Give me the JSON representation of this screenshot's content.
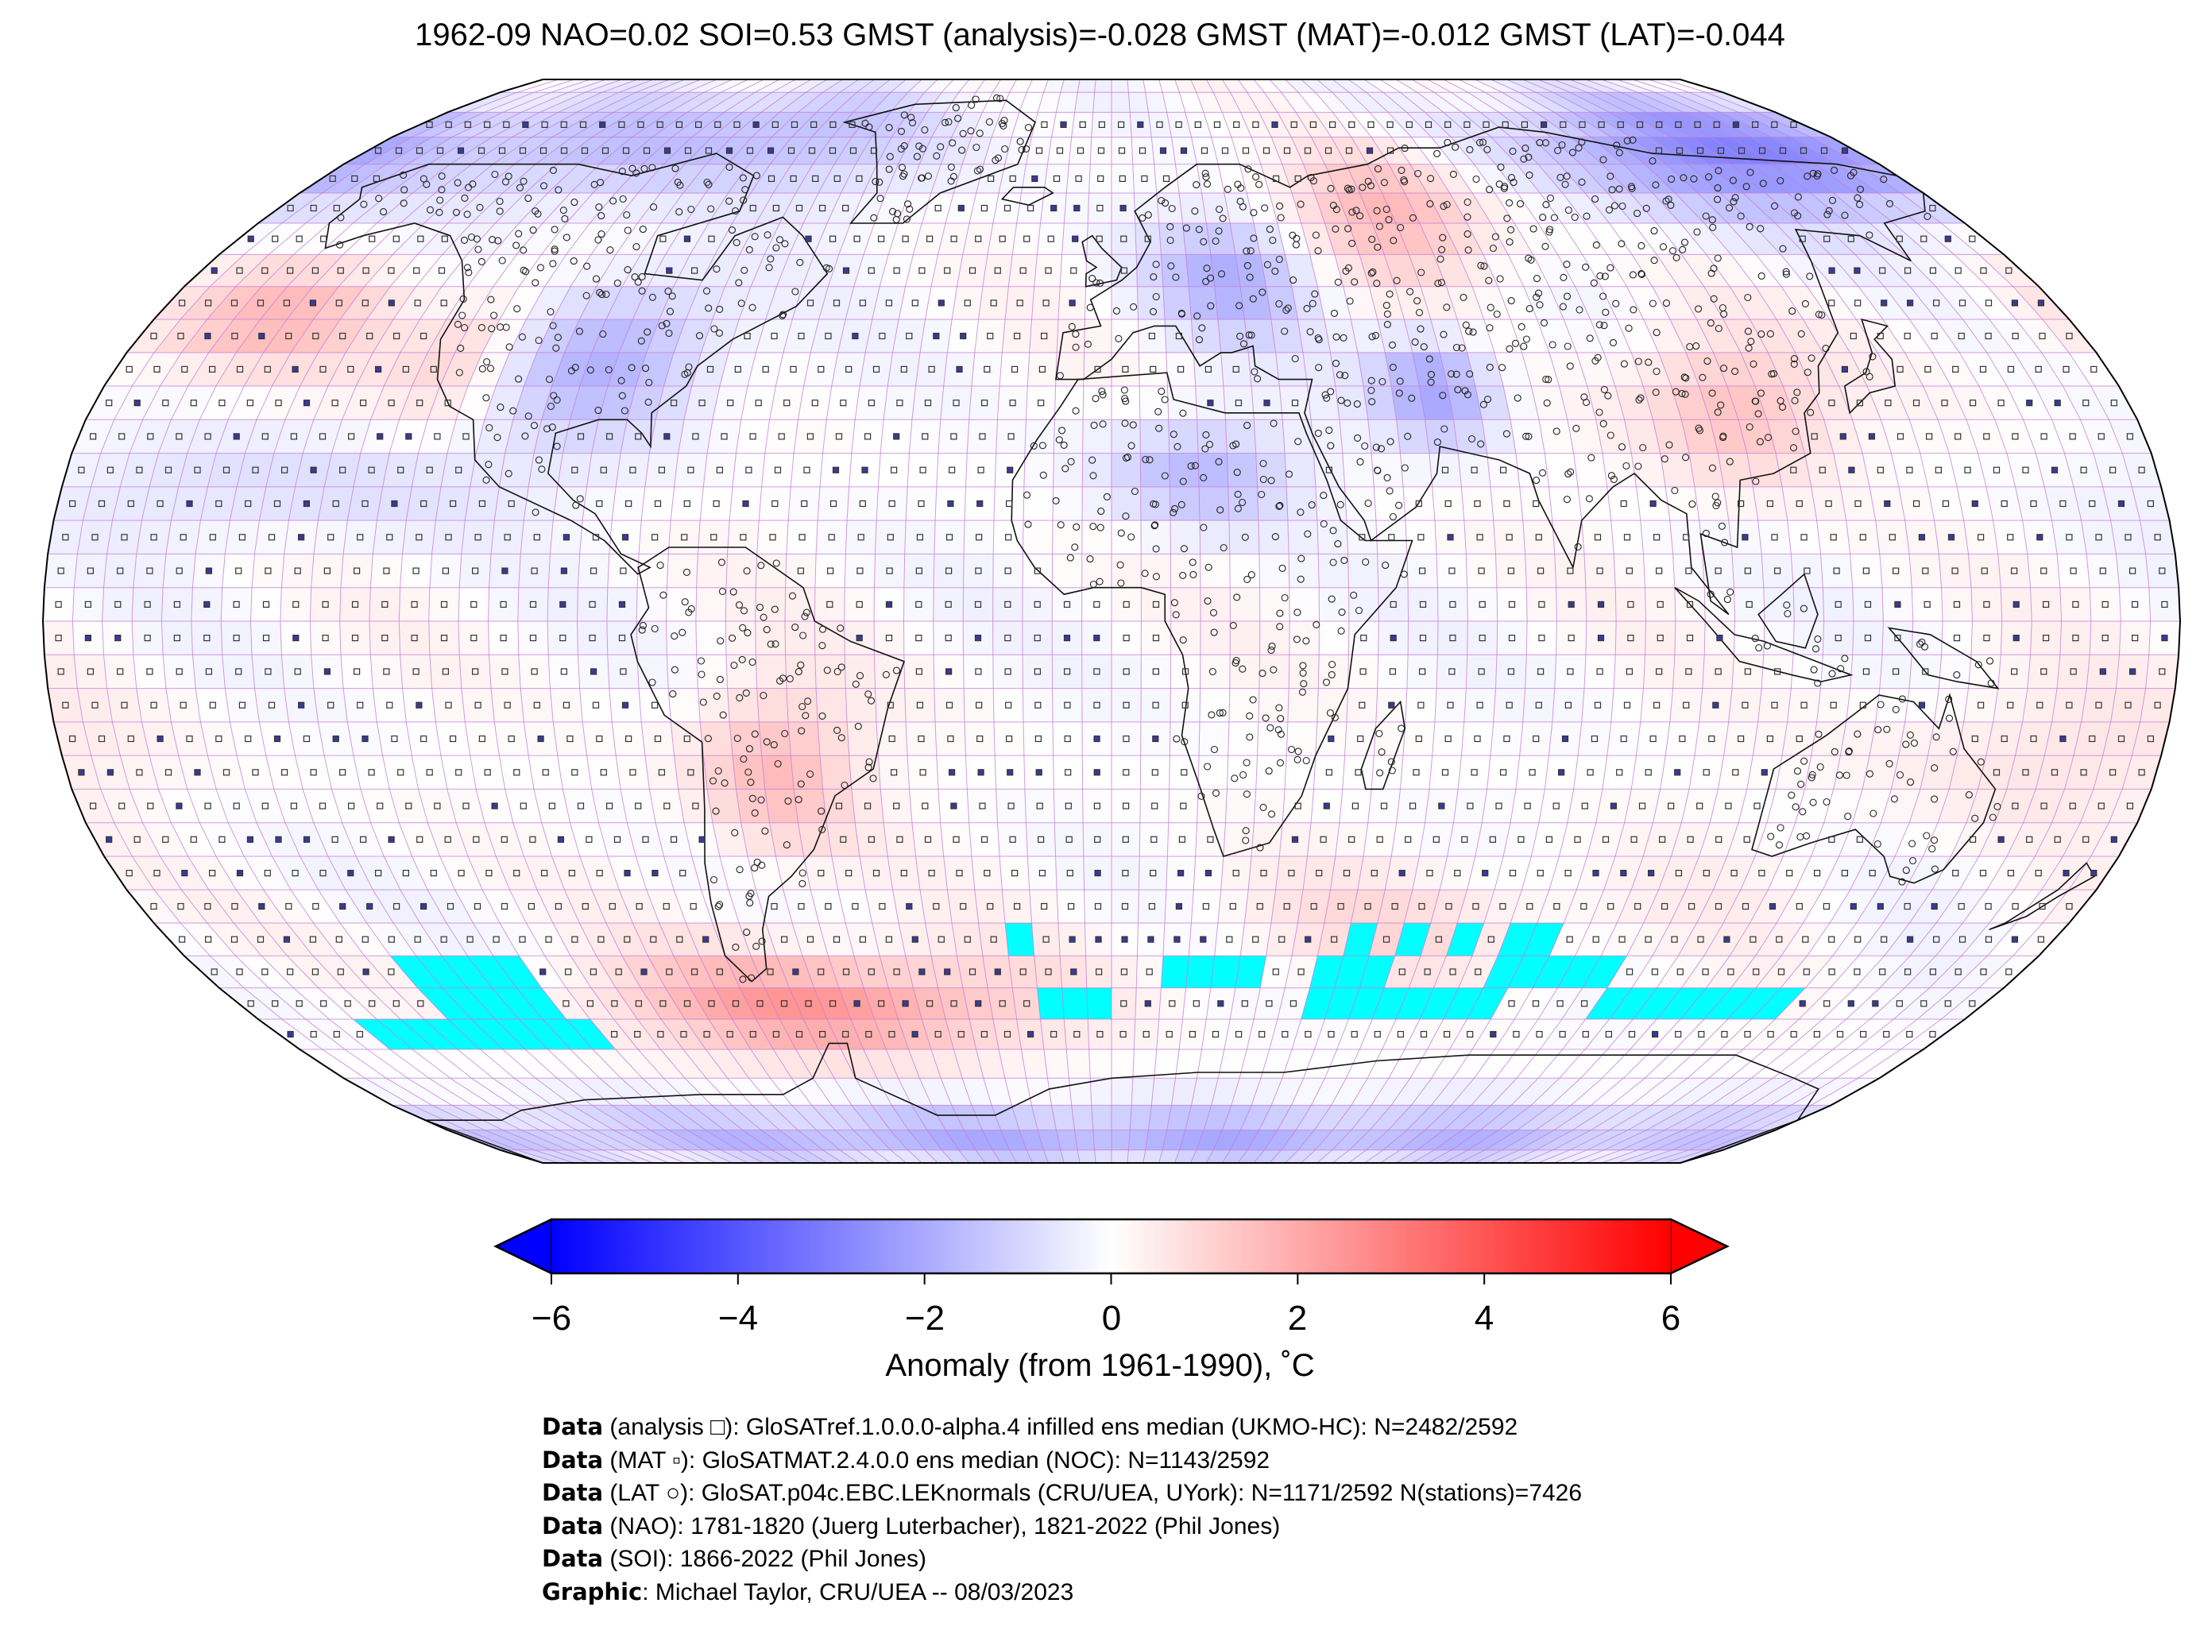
{
  "title": "1962-09 NAO=0.02 SOI=0.53 GMST (analysis)=-0.028 GMST (MAT)=-0.012 GMST (LAT)=-0.044",
  "map": {
    "projection": "Robinson",
    "grid": "5 degree lat/lon cells",
    "colormap": "bwr",
    "missing_color": "#00ffff",
    "gridline_color": "#c27bd6",
    "markers": {
      "analysis": "open-square",
      "mat": "filled-square",
      "lat": "open-circle"
    },
    "anomaly_regions": [
      {
        "name": "Arctic Siberia",
        "value": -2.8
      },
      {
        "name": "Arctic Canada",
        "value": -1.6
      },
      {
        "name": "North America interior",
        "value": -1.8
      },
      {
        "name": "Western USA",
        "value": 1.2
      },
      {
        "name": "North Pacific",
        "value": 1.4
      },
      {
        "name": "Eastern Europe",
        "value": -1.8
      },
      {
        "name": "Western Russia",
        "value": 1.8
      },
      {
        "name": "Iran / Central Asia",
        "value": -2.2
      },
      {
        "name": "China",
        "value": 1.6
      },
      {
        "name": "Sahara",
        "value": -1.6
      },
      {
        "name": "South America",
        "value": 1.6
      },
      {
        "name": "Southern Ocean (Pacific sector)",
        "value": 2.4
      },
      {
        "name": "Antarctica",
        "value": -1.8
      }
    ]
  },
  "colorbar": {
    "min": -6,
    "max": 6,
    "extend": "both",
    "ticks": [
      "−6",
      "−4",
      "−2",
      "0",
      "2",
      "4",
      "6"
    ],
    "label": "Anomaly (from 1961-1990), ˚C",
    "colors": {
      "low": "#0000ff",
      "mid": "#ffffff",
      "high": "#ff0000"
    }
  },
  "credits": [
    {
      "key": "Data",
      "text": " (analysis □): GloSATref.1.0.0.0-alpha.4 infilled ens median (UKMO-HC): N=2482/2592"
    },
    {
      "key": "Data",
      "text": " (MAT ▫): GloSATMAT.2.4.0.0 ens median (NOC): N=1143/2592"
    },
    {
      "key": "Data",
      "text": " (LAT ○): GloSAT.p04c.EBC.LEKnormals (CRU/UEA, UYork): N=1171/2592 N(stations)=7426"
    },
    {
      "key": "Data",
      "text": " (NAO): 1781-1820 (Juerg Luterbacher), 1821-2022 (Phil Jones)"
    },
    {
      "key": "Data",
      "text": " (SOI): 1866-2022 (Phil Jones)"
    },
    {
      "key": "Graphic",
      "text": ": Michael Taylor, CRU/UEA -- 08/03/2023"
    }
  ]
}
